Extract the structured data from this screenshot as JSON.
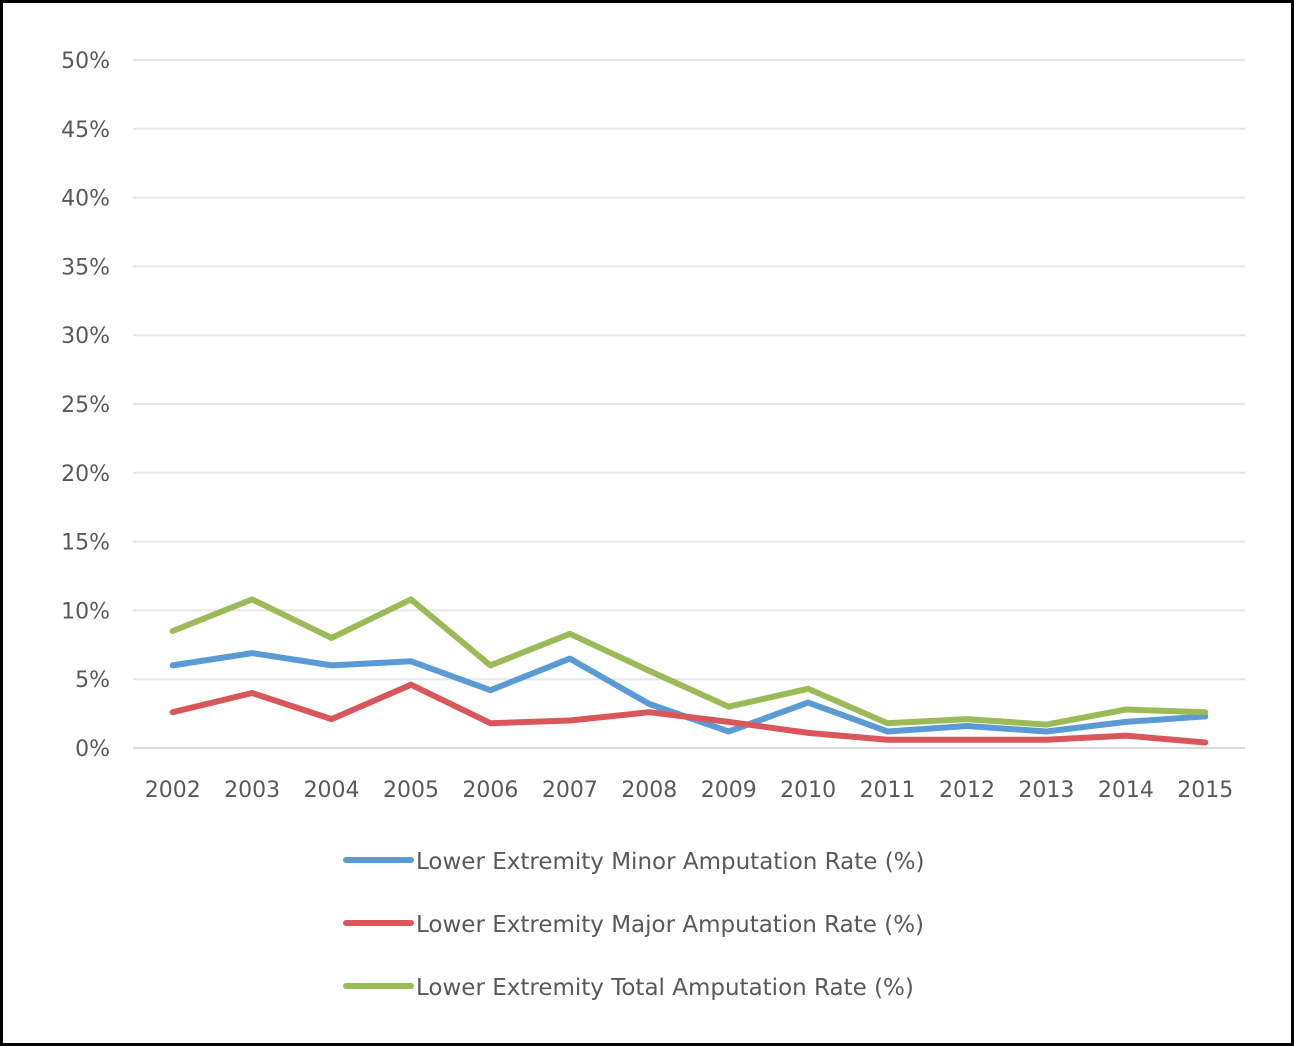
{
  "chart_data": {
    "type": "line",
    "title": "",
    "xlabel": "",
    "ylabel": "",
    "categories": [
      "2002",
      "2003",
      "2004",
      "2005",
      "2006",
      "2007",
      "2008",
      "2009",
      "2010",
      "2011",
      "2012",
      "2013",
      "2014",
      "2015"
    ],
    "ylim": [
      0,
      50
    ],
    "yticks": [
      "0%",
      "5%",
      "10%",
      "15%",
      "20%",
      "25%",
      "30%",
      "35%",
      "40%",
      "45%",
      "50%"
    ],
    "grid": true,
    "legend_position": "bottom",
    "series": [
      {
        "name": "Lower Extremity Minor Amputation Rate (%)",
        "color": "#5b9bd5",
        "values": [
          6.0,
          6.9,
          6.0,
          6.3,
          4.2,
          6.5,
          3.2,
          1.2,
          3.3,
          1.2,
          1.6,
          1.2,
          1.9,
          2.3
        ]
      },
      {
        "name": "Lower Extremity Major Amputation Rate (%)",
        "color": "#d9575a",
        "values": [
          2.6,
          4.0,
          2.1,
          4.6,
          1.8,
          2.0,
          2.6,
          1.9,
          1.1,
          0.6,
          0.6,
          0.6,
          0.9,
          0.4
        ]
      },
      {
        "name": "Lower Extremity Total Amputation Rate (%)",
        "color": "#9bbb59",
        "values": [
          8.5,
          10.8,
          8.0,
          10.8,
          6.0,
          8.3,
          5.6,
          3.0,
          4.3,
          1.8,
          2.1,
          1.7,
          2.8,
          2.6
        ]
      }
    ]
  }
}
